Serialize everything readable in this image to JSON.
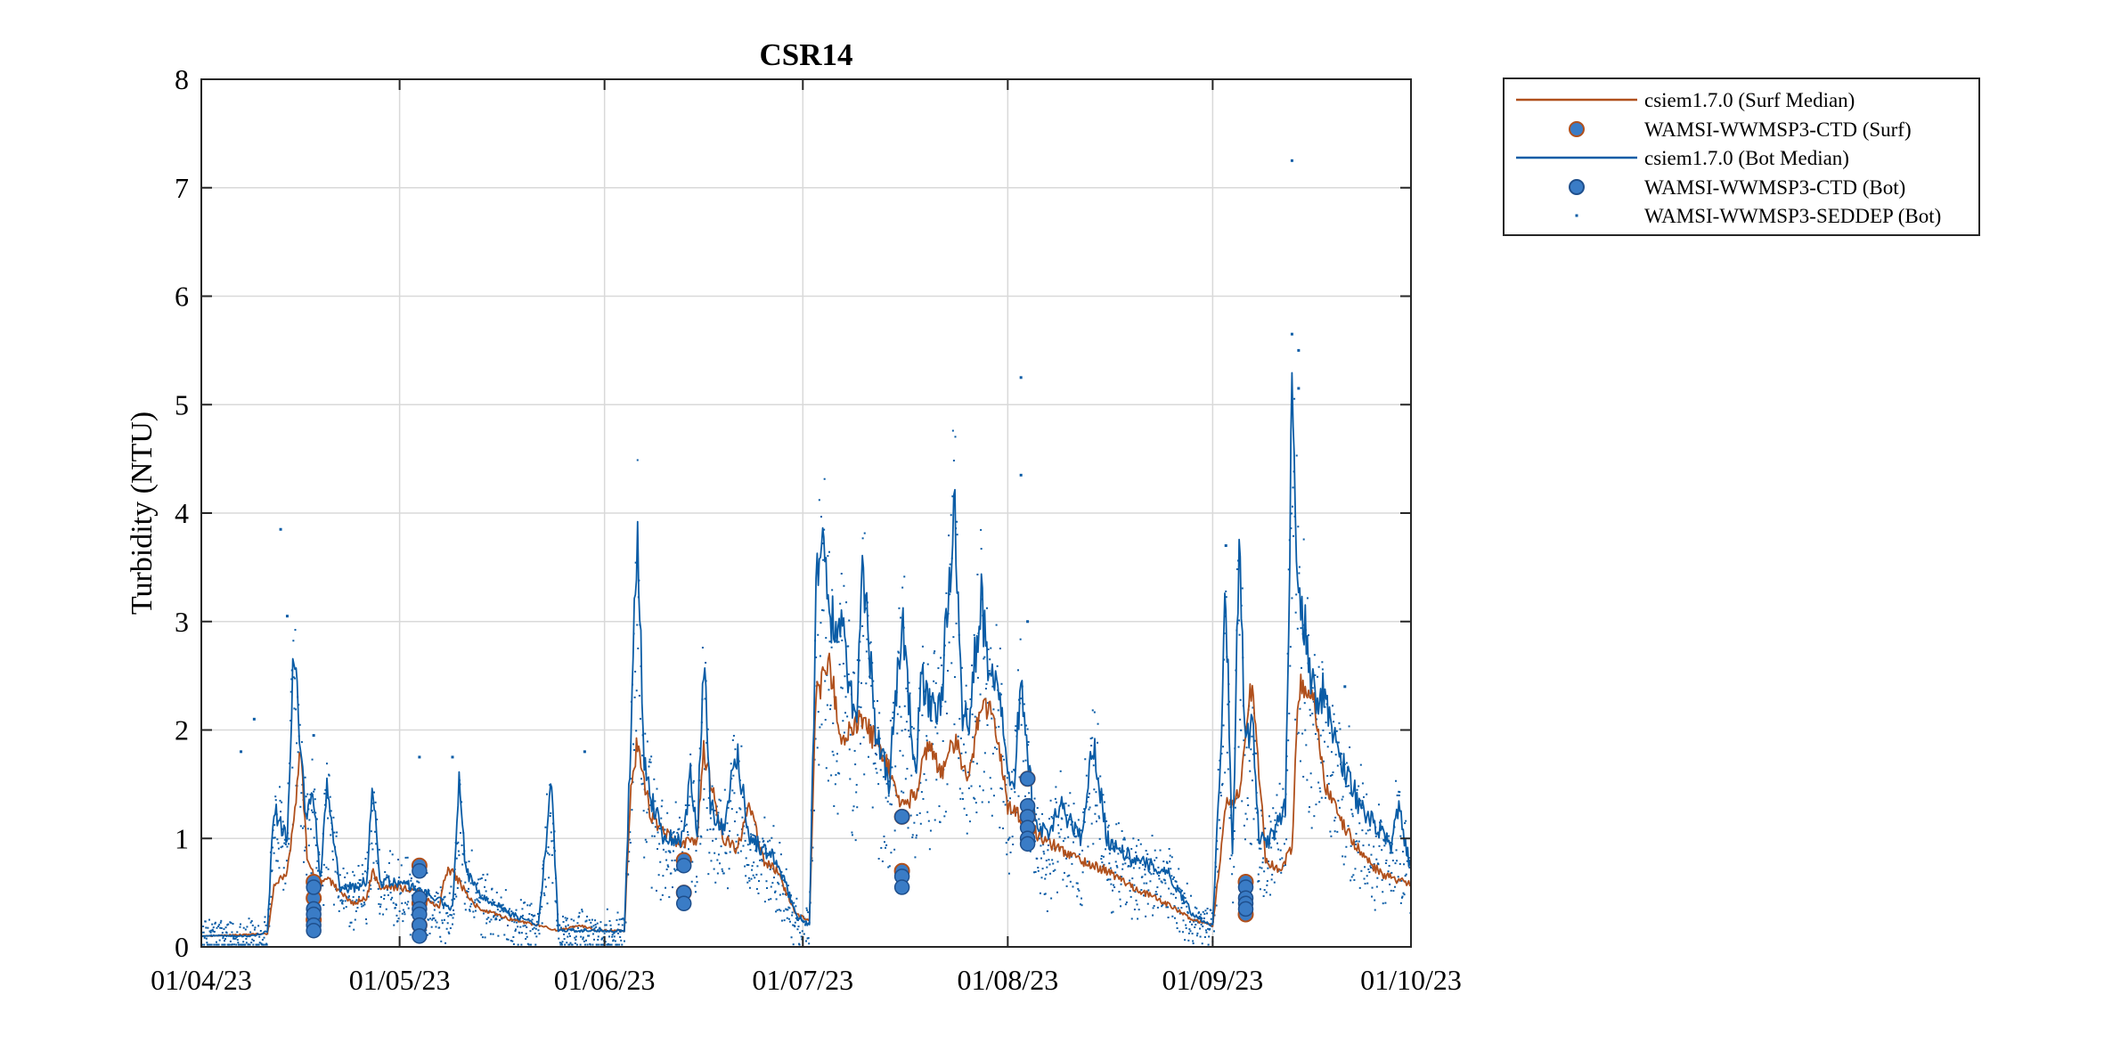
{
  "chart_data": {
    "type": "line",
    "title": "CSR14",
    "ylabel": "Turbidity (NTU)",
    "xlabel": "",
    "xlim": [
      "2023-04-01",
      "2023-10-01"
    ],
    "ylim": [
      0,
      8
    ],
    "x_ticks": [
      "2023-04-01",
      "2023-05-01",
      "2023-06-01",
      "2023-07-01",
      "2023-08-01",
      "2023-09-01",
      "2023-10-01"
    ],
    "x_tick_labels": [
      "01/04/23",
      "01/05/23",
      "01/06/23",
      "01/07/23",
      "01/08/23",
      "01/09/23",
      "01/10/23"
    ],
    "y_ticks": [
      0,
      1,
      2,
      3,
      4,
      5,
      6,
      7,
      8
    ],
    "y_tick_labels": [
      "0",
      "1",
      "2",
      "3",
      "4",
      "5",
      "6",
      "7",
      "8"
    ],
    "grid": true,
    "legend_position": "outside-top-right",
    "colors": {
      "surf": "#b0501c",
      "bot": "#0a5ca6",
      "marker_fill": "#3a7cc6",
      "marker_edge": "#1f4f8c",
      "grid": "#d9d9d9"
    },
    "series": [
      {
        "name": "csiem1.7.0 (Surf Median)",
        "kind": "line",
        "color": "#b0501c",
        "x": [
          "2023-04-01",
          "2023-04-11",
          "2023-04-12",
          "2023-04-14",
          "2023-04-15",
          "2023-04-16",
          "2023-04-17",
          "2023-04-19",
          "2023-04-20",
          "2023-04-22",
          "2023-04-24",
          "2023-04-26",
          "2023-04-27",
          "2023-04-28",
          "2023-05-01",
          "2023-05-04",
          "2023-05-07",
          "2023-05-08",
          "2023-05-09",
          "2023-05-11",
          "2023-05-13",
          "2023-05-18",
          "2023-05-22",
          "2023-05-25",
          "2023-05-28",
          "2023-05-31",
          "2023-06-04",
          "2023-06-05",
          "2023-06-06",
          "2023-06-08",
          "2023-06-11",
          "2023-06-13",
          "2023-06-15",
          "2023-06-16",
          "2023-06-19",
          "2023-06-21",
          "2023-06-23",
          "2023-06-25",
          "2023-06-27",
          "2023-06-30",
          "2023-07-02",
          "2023-07-03",
          "2023-07-05",
          "2023-07-07",
          "2023-07-10",
          "2023-07-13",
          "2023-07-16",
          "2023-07-18",
          "2023-07-20",
          "2023-07-22",
          "2023-07-24",
          "2023-07-26",
          "2023-07-28",
          "2023-07-30",
          "2023-08-01",
          "2023-08-03",
          "2023-08-06",
          "2023-08-09",
          "2023-08-12",
          "2023-08-16",
          "2023-08-20",
          "2023-08-25",
          "2023-08-29",
          "2023-09-01",
          "2023-09-03",
          "2023-09-05",
          "2023-09-07",
          "2023-09-09",
          "2023-09-11",
          "2023-09-13",
          "2023-09-14",
          "2023-09-16",
          "2023-09-18",
          "2023-09-20",
          "2023-09-23",
          "2023-09-26",
          "2023-09-29",
          "2023-10-01"
        ],
        "y": [
          0.1,
          0.12,
          0.55,
          0.7,
          1.15,
          1.9,
          0.8,
          0.55,
          0.65,
          0.5,
          0.4,
          0.45,
          0.7,
          0.55,
          0.55,
          0.5,
          0.35,
          0.7,
          0.7,
          0.5,
          0.35,
          0.25,
          0.2,
          0.15,
          0.2,
          0.15,
          0.15,
          1.5,
          1.9,
          1.2,
          1.0,
          0.95,
          1.0,
          1.8,
          1.0,
          0.9,
          1.3,
          0.8,
          0.7,
          0.3,
          0.25,
          2.3,
          2.6,
          1.9,
          2.1,
          1.8,
          1.3,
          1.4,
          1.9,
          1.6,
          1.9,
          1.5,
          2.3,
          2.1,
          1.3,
          1.2,
          1.0,
          0.9,
          0.8,
          0.7,
          0.55,
          0.4,
          0.25,
          0.2,
          1.3,
          1.4,
          2.5,
          0.8,
          0.7,
          0.9,
          2.4,
          2.4,
          1.5,
          1.2,
          0.9,
          0.7,
          0.6,
          0.6
        ]
      },
      {
        "name": "WAMSI-WWMSP3-CTD (Surf)",
        "kind": "scatter",
        "color": "#b0501c",
        "x": [
          "2023-04-18",
          "2023-04-18",
          "2023-04-18",
          "2023-05-04",
          "2023-05-04",
          "2023-05-04",
          "2023-06-13",
          "2023-06-13",
          "2023-07-16",
          "2023-07-16",
          "2023-08-04",
          "2023-08-04",
          "2023-09-06",
          "2023-09-06"
        ],
        "y": [
          0.6,
          0.45,
          0.25,
          0.75,
          0.4,
          0.2,
          0.8,
          0.5,
          1.2,
          0.7,
          1.55,
          1.2,
          0.6,
          0.3
        ]
      },
      {
        "name": "csiem1.7.0 (Bot Median)",
        "kind": "line",
        "color": "#0a5ca6",
        "x": [
          "2023-04-01",
          "2023-04-09",
          "2023-04-11",
          "2023-04-12",
          "2023-04-14",
          "2023-04-15",
          "2023-04-16",
          "2023-04-17",
          "2023-04-18",
          "2023-04-19",
          "2023-04-20",
          "2023-04-22",
          "2023-04-24",
          "2023-04-26",
          "2023-04-27",
          "2023-04-28",
          "2023-05-01",
          "2023-05-05",
          "2023-05-09",
          "2023-05-10",
          "2023-05-11",
          "2023-05-13",
          "2023-05-18",
          "2023-05-22",
          "2023-05-24",
          "2023-05-25",
          "2023-05-28",
          "2023-06-01",
          "2023-06-04",
          "2023-06-05",
          "2023-06-06",
          "2023-06-07",
          "2023-06-08",
          "2023-06-10",
          "2023-06-13",
          "2023-06-14",
          "2023-06-15",
          "2023-06-16",
          "2023-06-17",
          "2023-06-19",
          "2023-06-21",
          "2023-06-23",
          "2023-06-25",
          "2023-06-27",
          "2023-06-30",
          "2023-07-02",
          "2023-07-03",
          "2023-07-04",
          "2023-07-05",
          "2023-07-07",
          "2023-07-09",
          "2023-07-10",
          "2023-07-12",
          "2023-07-14",
          "2023-07-16",
          "2023-07-18",
          "2023-07-19",
          "2023-07-20",
          "2023-07-22",
          "2023-07-24",
          "2023-07-25",
          "2023-07-26",
          "2023-07-28",
          "2023-07-29",
          "2023-07-31",
          "2023-08-01",
          "2023-08-02",
          "2023-08-03",
          "2023-08-05",
          "2023-08-07",
          "2023-08-09",
          "2023-08-12",
          "2023-08-14",
          "2023-08-16",
          "2023-08-20",
          "2023-08-25",
          "2023-08-29",
          "2023-09-01",
          "2023-09-02",
          "2023-09-03",
          "2023-09-04",
          "2023-09-05",
          "2023-09-06",
          "2023-09-07",
          "2023-09-08",
          "2023-09-10",
          "2023-09-12",
          "2023-09-13",
          "2023-09-14",
          "2023-09-15",
          "2023-09-16",
          "2023-09-18",
          "2023-09-20",
          "2023-09-22",
          "2023-09-24",
          "2023-09-26",
          "2023-09-28",
          "2023-09-29",
          "2023-10-01"
        ],
        "y": [
          0.1,
          0.1,
          0.15,
          1.3,
          1.0,
          2.8,
          1.7,
          1.2,
          1.4,
          0.6,
          1.5,
          0.55,
          0.55,
          0.6,
          1.5,
          0.6,
          0.6,
          0.5,
          0.35,
          1.5,
          0.7,
          0.5,
          0.3,
          0.2,
          1.5,
          0.15,
          0.15,
          0.15,
          0.15,
          2.0,
          3.9,
          1.7,
          1.4,
          1.0,
          1.0,
          1.6,
          1.0,
          2.7,
          1.3,
          1.1,
          1.8,
          1.0,
          0.9,
          0.8,
          0.3,
          0.2,
          3.2,
          4.0,
          3.0,
          2.9,
          2.0,
          3.6,
          2.0,
          1.5,
          3.0,
          1.6,
          2.5,
          2.2,
          2.3,
          4.2,
          2.2,
          2.0,
          3.3,
          2.5,
          2.3,
          1.5,
          1.6,
          2.4,
          1.2,
          1.0,
          1.3,
          1.0,
          1.9,
          1.0,
          0.8,
          0.7,
          0.3,
          0.2,
          1.5,
          3.3,
          0.8,
          3.7,
          1.8,
          2.1,
          1.0,
          1.0,
          1.3,
          5.0,
          3.3,
          3.0,
          2.4,
          2.3,
          1.8,
          1.5,
          1.2,
          1.1,
          0.9,
          1.3,
          0.7
        ]
      },
      {
        "name": "WAMSI-WWMSP3-CTD (Bot)",
        "kind": "scatter",
        "color": "#3a7cc6",
        "x": [
          "2023-04-18",
          "2023-04-18",
          "2023-04-18",
          "2023-04-18",
          "2023-04-18",
          "2023-05-04",
          "2023-05-04",
          "2023-05-04",
          "2023-05-04",
          "2023-05-04",
          "2023-05-04",
          "2023-06-13",
          "2023-06-13",
          "2023-06-13",
          "2023-07-16",
          "2023-07-16",
          "2023-07-16",
          "2023-08-04",
          "2023-08-04",
          "2023-08-04",
          "2023-08-04",
          "2023-08-04",
          "2023-08-04",
          "2023-09-06",
          "2023-09-06",
          "2023-09-06",
          "2023-09-06"
        ],
        "y": [
          0.55,
          0.35,
          0.3,
          0.2,
          0.15,
          0.7,
          0.45,
          0.35,
          0.3,
          0.2,
          0.1,
          0.75,
          0.5,
          0.4,
          1.2,
          0.65,
          0.55,
          1.55,
          1.3,
          1.2,
          1.1,
          1.0,
          0.95,
          0.55,
          0.45,
          0.4,
          0.35
        ]
      },
      {
        "name": "WAMSI-WWMSP3-SEDDEP (Bot)",
        "kind": "dots",
        "color": "#0a5ca6",
        "outliers_x": [
          "2023-04-13",
          "2023-04-14",
          "2023-04-09",
          "2023-04-07",
          "2023-04-18",
          "2023-05-04",
          "2023-05-09",
          "2023-05-29",
          "2023-08-03",
          "2023-08-03",
          "2023-08-04",
          "2023-09-03",
          "2023-09-13",
          "2023-09-13",
          "2023-09-14",
          "2023-09-14",
          "2023-09-21"
        ],
        "outliers_y": [
          3.85,
          3.05,
          2.1,
          1.8,
          1.95,
          1.75,
          1.75,
          1.8,
          5.25,
          4.35,
          3.0,
          3.7,
          7.25,
          5.65,
          5.5,
          5.15,
          2.4
        ]
      }
    ]
  }
}
